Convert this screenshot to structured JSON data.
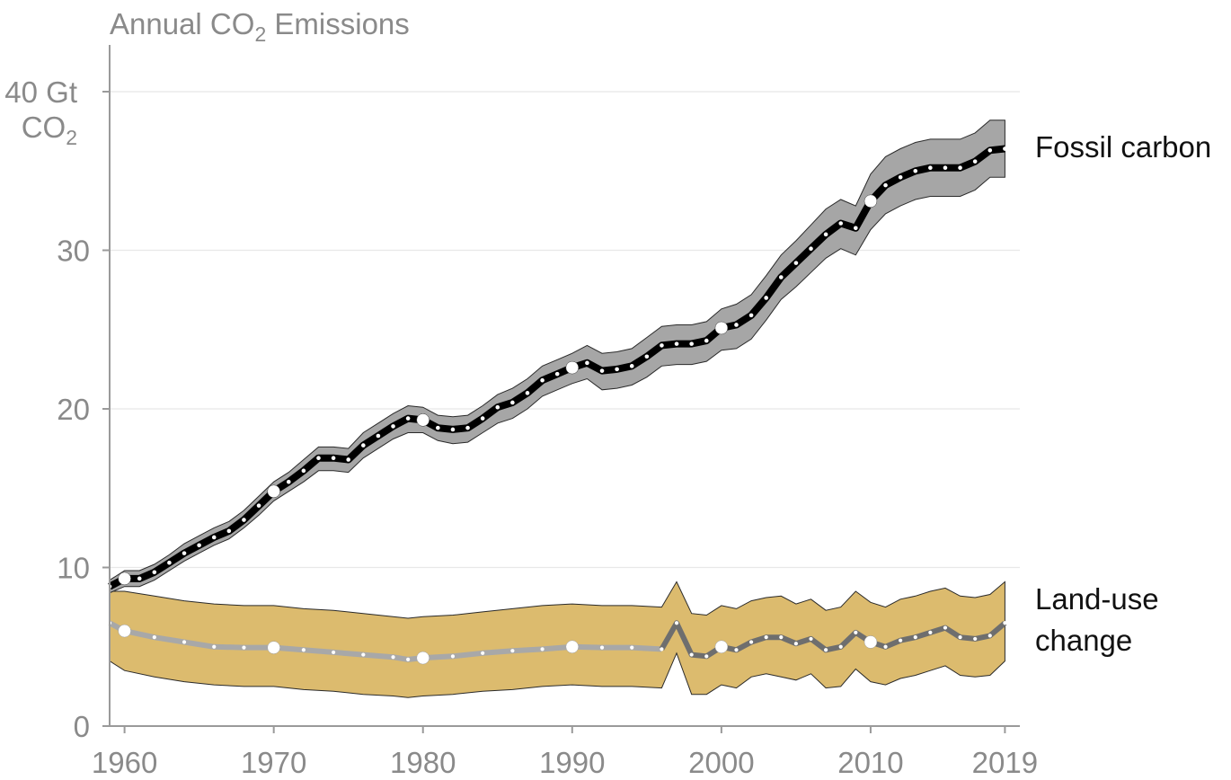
{
  "chart_data": {
    "type": "area",
    "title": {
      "text": "Annual CO",
      "sub": "2",
      "rest": " Emissions"
    },
    "ylabel": {
      "line1": "40 Gt",
      "line2_text": "CO",
      "line2_sub": "2"
    },
    "ylim": [
      0,
      40
    ],
    "xlim": [
      1959,
      2020
    ],
    "yticks": [
      0,
      10,
      20,
      30
    ],
    "xticks": [
      1960,
      1970,
      1980,
      1990,
      2000,
      2010,
      2019
    ],
    "grid": true,
    "markers": [
      1960,
      1970,
      1980,
      1990,
      2000,
      2010
    ],
    "colors": {
      "fossil_band": "#a6a6a6",
      "fossil_line": "#000000",
      "landuse_band": "#dcbb6e",
      "landuse_line_early": "#a8a8a8",
      "landuse_line_late": "#6e6e6e",
      "axis_text": "#8a8a8a",
      "label_text": "#111111"
    },
    "series": [
      {
        "name": "Fossil carbon",
        "years": [
          1959,
          1960,
          1961,
          1962,
          1963,
          1964,
          1965,
          1966,
          1967,
          1968,
          1969,
          1970,
          1971,
          1972,
          1973,
          1974,
          1975,
          1976,
          1977,
          1978,
          1979,
          1980,
          1981,
          1982,
          1983,
          1984,
          1985,
          1986,
          1987,
          1988,
          1989,
          1990,
          1991,
          1992,
          1993,
          1994,
          1995,
          1996,
          1997,
          1998,
          1999,
          2000,
          2001,
          2002,
          2003,
          2004,
          2005,
          2006,
          2007,
          2008,
          2009,
          2010,
          2011,
          2012,
          2013,
          2014,
          2015,
          2016,
          2017,
          2018,
          2019
        ],
        "values": [
          8.8,
          9.3,
          9.3,
          9.7,
          10.3,
          10.9,
          11.4,
          11.9,
          12.3,
          13.0,
          13.9,
          14.8,
          15.4,
          16.1,
          16.9,
          16.9,
          16.8,
          17.7,
          18.3,
          18.9,
          19.4,
          19.3,
          18.8,
          18.7,
          18.8,
          19.4,
          20.1,
          20.4,
          21.0,
          21.8,
          22.2,
          22.6,
          22.9,
          22.4,
          22.5,
          22.7,
          23.3,
          24.0,
          24.1,
          24.1,
          24.3,
          25.1,
          25.3,
          25.9,
          27.0,
          28.3,
          29.2,
          30.1,
          31.0,
          31.7,
          31.4,
          33.1,
          34.1,
          34.6,
          35.0,
          35.2,
          35.2,
          35.2,
          35.6,
          36.3,
          36.4
        ],
        "low": [
          8.4,
          8.8,
          8.8,
          9.2,
          9.8,
          10.4,
          10.9,
          11.4,
          11.8,
          12.5,
          13.3,
          14.2,
          14.8,
          15.4,
          16.1,
          16.1,
          16.0,
          16.9,
          17.5,
          18.1,
          18.5,
          18.5,
          18.0,
          17.8,
          17.9,
          18.5,
          19.1,
          19.4,
          20.0,
          20.8,
          21.2,
          21.6,
          21.9,
          21.2,
          21.3,
          21.5,
          22.0,
          22.7,
          22.8,
          22.8,
          23.0,
          23.7,
          23.8,
          24.4,
          25.6,
          26.9,
          27.7,
          28.6,
          29.5,
          30.1,
          29.7,
          31.3,
          32.3,
          32.8,
          33.2,
          33.4,
          33.4,
          33.4,
          33.8,
          34.6,
          34.6
        ],
        "high": [
          9.2,
          9.8,
          9.8,
          10.2,
          10.8,
          11.5,
          12.0,
          12.5,
          12.9,
          13.6,
          14.5,
          15.4,
          16.0,
          16.8,
          17.6,
          17.6,
          17.5,
          18.5,
          19.1,
          19.7,
          20.2,
          20.1,
          19.6,
          19.5,
          19.6,
          20.2,
          20.9,
          21.3,
          21.9,
          22.7,
          23.1,
          23.5,
          24.0,
          23.5,
          23.6,
          23.8,
          24.5,
          25.2,
          25.3,
          25.3,
          25.5,
          26.3,
          26.6,
          27.2,
          28.4,
          29.7,
          30.6,
          31.6,
          32.6,
          33.2,
          32.8,
          34.8,
          35.9,
          36.4,
          36.8,
          37.0,
          37.0,
          37.0,
          37.4,
          38.2,
          38.2
        ]
      },
      {
        "name": "Land-use change",
        "years": [
          1959,
          1960,
          1962,
          1964,
          1966,
          1968,
          1970,
          1972,
          1974,
          1976,
          1978,
          1979,
          1980,
          1982,
          1984,
          1986,
          1988,
          1990,
          1992,
          1994,
          1996,
          1997,
          1998,
          1999,
          2000,
          2001,
          2002,
          2003,
          2004,
          2005,
          2006,
          2007,
          2008,
          2009,
          2010,
          2011,
          2012,
          2013,
          2014,
          2015,
          2016,
          2017,
          2018,
          2019
        ],
        "values": [
          6.5,
          6.0,
          5.6,
          5.3,
          5.0,
          4.95,
          4.95,
          4.8,
          4.65,
          4.5,
          4.35,
          4.2,
          4.3,
          4.4,
          4.6,
          4.75,
          4.85,
          5.0,
          4.95,
          4.95,
          4.85,
          6.5,
          4.5,
          4.4,
          5.0,
          4.8,
          5.3,
          5.6,
          5.6,
          5.2,
          5.5,
          4.8,
          5.0,
          5.9,
          5.3,
          5.0,
          5.4,
          5.6,
          5.9,
          6.2,
          5.6,
          5.5,
          5.7,
          6.5
        ],
        "low": [
          4.1,
          3.5,
          3.1,
          2.8,
          2.6,
          2.5,
          2.5,
          2.3,
          2.2,
          2.0,
          1.9,
          1.8,
          1.9,
          2.0,
          2.2,
          2.3,
          2.5,
          2.6,
          2.5,
          2.5,
          2.4,
          4.6,
          2.0,
          2.0,
          2.6,
          2.4,
          3.1,
          3.3,
          3.1,
          2.9,
          3.3,
          2.4,
          2.5,
          3.6,
          2.8,
          2.6,
          3.0,
          3.2,
          3.5,
          3.8,
          3.2,
          3.1,
          3.2,
          4.1
        ],
        "high": [
          8.5,
          8.5,
          8.2,
          7.9,
          7.7,
          7.6,
          7.6,
          7.4,
          7.3,
          7.1,
          6.9,
          6.8,
          6.9,
          7.0,
          7.2,
          7.4,
          7.6,
          7.7,
          7.6,
          7.6,
          7.5,
          9.1,
          7.1,
          7.0,
          7.6,
          7.4,
          7.9,
          8.1,
          8.2,
          7.7,
          8.0,
          7.3,
          7.5,
          8.5,
          7.8,
          7.5,
          8.0,
          8.2,
          8.5,
          8.7,
          8.2,
          8.1,
          8.3,
          9.1
        ]
      }
    ],
    "labels": {
      "fossil": "Fossil carbon",
      "landuse_line1": "Land-use",
      "landuse_line2": "change"
    }
  }
}
